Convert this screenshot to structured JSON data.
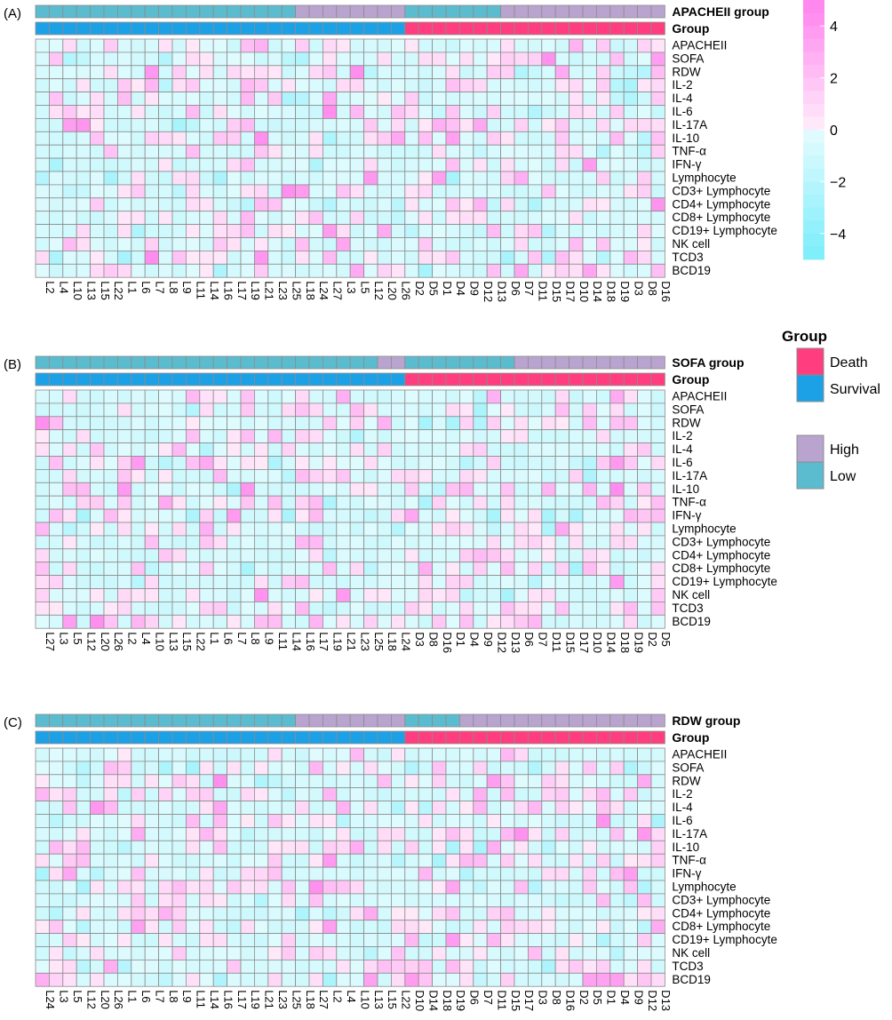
{
  "chart_data": [
    {
      "type": "heatmap",
      "panel": "(A)",
      "annotation_rows": [
        "APACHEII group",
        "Group"
      ],
      "rows": [
        "APACHEII",
        "SOFA",
        "RDW",
        "IL-2",
        "IL-4",
        "IL-6",
        "IL-17A",
        "IL-10",
        "TNF-α",
        "IFN-γ",
        "Lymphocyte",
        "CD3+ Lymphocyte",
        "CD4+ Lymphocyte",
        "CD8+ Lymphocyte",
        "CD19+ Lymphocyte",
        "NK cell",
        "TCD3",
        "BCD19"
      ],
      "columns": [
        "L2",
        "L4",
        "L10",
        "L13",
        "L15",
        "L22",
        "L1",
        "L6",
        "L7",
        "L8",
        "L9",
        "L11",
        "L14",
        "L16",
        "L17",
        "L19",
        "L21",
        "L23",
        "L25",
        "L18",
        "L24",
        "L27",
        "L3",
        "L5",
        "L12",
        "L20",
        "L26",
        "D2",
        "D5",
        "D1",
        "D4",
        "D9",
        "D12",
        "D13",
        "D6",
        "D7",
        "D11",
        "D15",
        "D17",
        "D10",
        "D14",
        "D18",
        "D19",
        "D3",
        "D8",
        "D16"
      ],
      "group": [
        "Survival",
        "Survival",
        "Survival",
        "Survival",
        "Survival",
        "Survival",
        "Survival",
        "Survival",
        "Survival",
        "Survival",
        "Survival",
        "Survival",
        "Survival",
        "Survival",
        "Survival",
        "Survival",
        "Survival",
        "Survival",
        "Survival",
        "Survival",
        "Survival",
        "Survival",
        "Survival",
        "Survival",
        "Survival",
        "Survival",
        "Survival",
        "Death",
        "Death",
        "Death",
        "Death",
        "Death",
        "Death",
        "Death",
        "Death",
        "Death",
        "Death",
        "Death",
        "Death",
        "Death",
        "Death",
        "Death",
        "Death",
        "Death",
        "Death",
        "Death"
      ],
      "score_group": [
        "Low",
        "Low",
        "Low",
        "Low",
        "Low",
        "Low",
        "Low",
        "Low",
        "Low",
        "Low",
        "Low",
        "Low",
        "Low",
        "Low",
        "Low",
        "Low",
        "Low",
        "Low",
        "Low",
        "High",
        "High",
        "High",
        "High",
        "High",
        "High",
        "High",
        "High",
        "Low",
        "Low",
        "Low",
        "Low",
        "Low",
        "Low",
        "Low",
        "High",
        "High",
        "High",
        "High",
        "High",
        "High",
        "High",
        "High",
        "High",
        "High",
        "High",
        "High"
      ],
      "seed": 11
    },
    {
      "type": "heatmap",
      "panel": "(B)",
      "annotation_rows": [
        "SOFA group",
        "Group"
      ],
      "rows": [
        "APACHEII",
        "SOFA",
        "RDW",
        "IL-2",
        "IL-4",
        "IL-6",
        "IL-17A",
        "IL-10",
        "TNF-α",
        "IFN-γ",
        "Lymphocyte",
        "CD3+ Lymphocyte",
        "CD4+ Lymphocyte",
        "CD8+ Lymphocyte",
        "CD19+ Lymphocyte",
        "NK cell",
        "TCD3",
        "BCD19"
      ],
      "columns": [
        "L27",
        "L3",
        "L5",
        "L12",
        "L20",
        "L26",
        "L2",
        "L4",
        "L10",
        "L13",
        "L15",
        "L22",
        "L1",
        "L6",
        "L7",
        "L8",
        "L9",
        "L11",
        "L14",
        "L16",
        "L17",
        "L19",
        "L21",
        "L23",
        "L25",
        "L18",
        "L24",
        "D3",
        "D8",
        "D16",
        "D1",
        "D4",
        "D9",
        "D12",
        "D13",
        "D6",
        "D7",
        "D11",
        "D15",
        "D17",
        "D10",
        "D14",
        "D18",
        "D19",
        "D2",
        "D5"
      ],
      "group": [
        "Survival",
        "Survival",
        "Survival",
        "Survival",
        "Survival",
        "Survival",
        "Survival",
        "Survival",
        "Survival",
        "Survival",
        "Survival",
        "Survival",
        "Survival",
        "Survival",
        "Survival",
        "Survival",
        "Survival",
        "Survival",
        "Survival",
        "Survival",
        "Survival",
        "Survival",
        "Survival",
        "Survival",
        "Survival",
        "Survival",
        "Survival",
        "Death",
        "Death",
        "Death",
        "Death",
        "Death",
        "Death",
        "Death",
        "Death",
        "Death",
        "Death",
        "Death",
        "Death",
        "Death",
        "Death",
        "Death",
        "Death",
        "Death",
        "Death",
        "Death"
      ],
      "score_group": [
        "Low",
        "Low",
        "Low",
        "Low",
        "Low",
        "Low",
        "Low",
        "Low",
        "Low",
        "Low",
        "Low",
        "Low",
        "Low",
        "Low",
        "Low",
        "Low",
        "Low",
        "Low",
        "Low",
        "Low",
        "Low",
        "Low",
        "Low",
        "Low",
        "Low",
        "High",
        "High",
        "Low",
        "Low",
        "Low",
        "Low",
        "Low",
        "Low",
        "Low",
        "Low",
        "High",
        "High",
        "High",
        "High",
        "High",
        "High",
        "High",
        "High",
        "High",
        "High",
        "High"
      ],
      "seed": 23
    },
    {
      "type": "heatmap",
      "panel": "(C)",
      "annotation_rows": [
        "RDW group",
        "Group"
      ],
      "rows": [
        "APACHEII",
        "SOFA",
        "RDW",
        "IL-2",
        "IL-4",
        "IL-6",
        "IL-17A",
        "IL-10",
        "TNF-α",
        "IFN-γ",
        "Lymphocyte",
        "CD3+ Lymphocyte",
        "CD4+ Lymphocyte",
        "CD8+ Lymphocyte",
        "CD19+ Lymphocyte",
        "NK cell",
        "TCD3",
        "BCD19"
      ],
      "columns": [
        "L24",
        "L3",
        "L5",
        "L12",
        "L20",
        "L26",
        "L1",
        "L6",
        "L7",
        "L8",
        "L9",
        "L11",
        "L14",
        "L16",
        "L17",
        "L19",
        "L21",
        "L23",
        "L25",
        "L18",
        "L27",
        "L2",
        "L4",
        "L10",
        "L13",
        "L15",
        "L22",
        "D10",
        "D14",
        "D18",
        "D19",
        "D6",
        "D7",
        "D11",
        "D15",
        "D17",
        "D3",
        "D8",
        "D16",
        "D2",
        "D5",
        "D1",
        "D4",
        "D9",
        "D12",
        "D13"
      ],
      "group": [
        "Survival",
        "Survival",
        "Survival",
        "Survival",
        "Survival",
        "Survival",
        "Survival",
        "Survival",
        "Survival",
        "Survival",
        "Survival",
        "Survival",
        "Survival",
        "Survival",
        "Survival",
        "Survival",
        "Survival",
        "Survival",
        "Survival",
        "Survival",
        "Survival",
        "Survival",
        "Survival",
        "Survival",
        "Survival",
        "Survival",
        "Survival",
        "Death",
        "Death",
        "Death",
        "Death",
        "Death",
        "Death",
        "Death",
        "Death",
        "Death",
        "Death",
        "Death",
        "Death",
        "Death",
        "Death",
        "Death",
        "Death",
        "Death",
        "Death",
        "Death"
      ],
      "score_group": [
        "Low",
        "Low",
        "Low",
        "Low",
        "Low",
        "Low",
        "Low",
        "Low",
        "Low",
        "Low",
        "Low",
        "Low",
        "Low",
        "Low",
        "Low",
        "Low",
        "Low",
        "Low",
        "Low",
        "High",
        "High",
        "High",
        "High",
        "High",
        "High",
        "High",
        "High",
        "Low",
        "Low",
        "Low",
        "Low",
        "High",
        "High",
        "High",
        "High",
        "High",
        "High",
        "High",
        "High",
        "High",
        "High",
        "High",
        "High",
        "High",
        "High",
        "High"
      ],
      "seed": 37
    }
  ],
  "legend": {
    "colorbar": {
      "ticks": [
        "4",
        "2",
        "0",
        "−2",
        "−4"
      ],
      "range": [
        -5,
        5
      ]
    },
    "group_title": "Group",
    "group_items": [
      {
        "label": "Death",
        "color": "#ff3d7f"
      },
      {
        "label": "Survival",
        "color": "#1da1e6"
      }
    ],
    "score_items": [
      {
        "label": "High",
        "color": "#b9a3cf"
      },
      {
        "label": "Low",
        "color": "#5bbccf"
      }
    ]
  },
  "colors": {
    "high": "#b9a3cf",
    "low": "#5bbccf",
    "death": "#ff3d7f",
    "survival": "#1da1e6",
    "grid": "#8c8c8c",
    "neg_max": "#80eefb",
    "pos_max": "#ff88ee"
  }
}
